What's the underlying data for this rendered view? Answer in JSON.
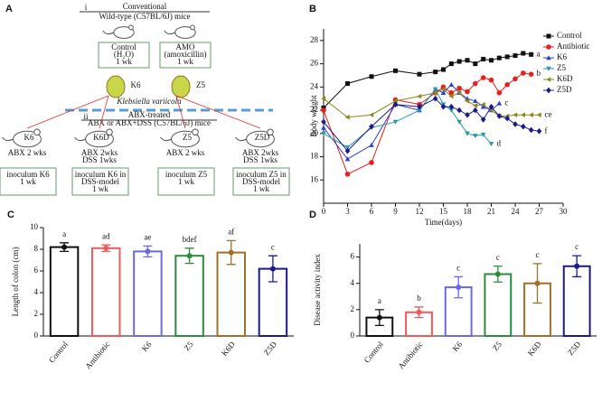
{
  "diagram": {
    "panel_label": "A",
    "section_i": {
      "marker": "i",
      "title": "Conventional",
      "subtitle": "Wild-type (C57BL/6J) mice"
    },
    "groups": [
      {
        "lines": [
          "Control",
          "(H₂O)",
          "1 wk"
        ]
      },
      {
        "lines": [
          "AMO",
          "(amoxicillin)",
          "1 wk"
        ]
      }
    ],
    "strains": [
      "K6",
      "Z5"
    ],
    "species": "Klebsiella variicola",
    "section_ii": {
      "marker": "ii",
      "title": "ABX-treated",
      "subtitle": "ABX or ABX+DSS (C57BL/6J) mice"
    },
    "mice": [
      {
        "name": "K6",
        "lines": [
          "ABX 2 wks"
        ]
      },
      {
        "name": "K6D",
        "lines": [
          "ABX  2wks",
          "DSS  1wks"
        ]
      },
      {
        "name": "Z5",
        "lines": [
          "ABX 2 wks"
        ]
      },
      {
        "name": "Z5D",
        "lines": [
          "ABX  2wks",
          "DSS  1wks"
        ]
      }
    ],
    "inocula": [
      {
        "lines": [
          "inoculum K6",
          "1 wk"
        ]
      },
      {
        "lines": [
          "inoculum K6 in",
          "DSS-model",
          "1 wk"
        ]
      },
      {
        "lines": [
          "inoculum Z5",
          "1 wk"
        ]
      },
      {
        "lines": [
          "inoculum Z5 in",
          "DSS-model",
          "1 wk"
        ]
      }
    ]
  },
  "chart_data": [
    {
      "type": "line",
      "panel_label": "B",
      "x_label": "Time(days)",
      "y_label": "Body weight",
      "x": [
        0,
        3,
        6,
        9,
        12,
        14,
        15,
        16,
        17,
        18,
        19,
        20,
        21,
        22,
        23,
        24,
        25,
        26,
        27
      ],
      "xlim": [
        0,
        30
      ],
      "xticks": [
        0,
        3,
        6,
        9,
        12,
        15,
        18,
        21,
        24,
        27,
        30
      ],
      "ylim": [
        14,
        29
      ],
      "yticks": [
        16,
        18,
        20,
        22,
        24,
        26,
        28
      ],
      "legend": "top-right",
      "series": [
        {
          "name": "Control",
          "color": "#111111",
          "marker": "square",
          "end_label": "a",
          "values": [
            22.2,
            24.3,
            24.9,
            25.4,
            25.1,
            25.3,
            25.5,
            26.0,
            26.2,
            26.3,
            26.0,
            26.4,
            26.3,
            26.5,
            26.6,
            26.7,
            26.9,
            26.8,
            null
          ]
        },
        {
          "name": "Antibiotic",
          "color": "#e8201c",
          "marker": "circle",
          "end_label": "b",
          "values": [
            22.0,
            16.5,
            17.5,
            22.9,
            22.5,
            23.5,
            24.0,
            23.5,
            23.9,
            23.6,
            24.3,
            24.8,
            24.6,
            23.5,
            24.2,
            24.7,
            25.2,
            25.1,
            null
          ]
        },
        {
          "name": "K6",
          "color": "#2c3fd0",
          "marker": "triangle",
          "end_label": "c",
          "values": [
            20.5,
            17.8,
            19.0,
            22.5,
            22.0,
            23.8,
            23.5,
            24.2,
            23.5,
            23.0,
            22.8,
            22.3,
            22.0,
            22.6,
            null,
            null,
            null,
            null,
            null
          ]
        },
        {
          "name": "Z5",
          "color": "#2a9aa8",
          "marker": "triangle-down",
          "end_label": "d",
          "values": [
            20.0,
            18.8,
            20.5,
            21.0,
            22.0,
            23.8,
            22.5,
            22.0,
            21.0,
            20.0,
            19.8,
            19.9,
            19.1,
            null,
            null,
            null,
            null,
            null,
            null
          ]
        },
        {
          "name": "K6D",
          "color": "#8a8a20",
          "marker": "triangle-left",
          "end_label": "ce",
          "values": [
            23.0,
            21.4,
            21.6,
            22.8,
            23.2,
            23.5,
            23.8,
            23.2,
            23.5,
            22.8,
            22.4,
            22.5,
            22.0,
            21.5,
            21.5,
            21.6,
            21.6,
            21.6,
            21.6
          ]
        },
        {
          "name": "Z5D",
          "color": "#1a1a8c",
          "marker": "diamond",
          "end_label": "f",
          "values": [
            21.0,
            18.5,
            20.6,
            22.5,
            22.3,
            23.0,
            22.3,
            22.3,
            22.0,
            21.6,
            22.0,
            21.2,
            22.3,
            21.5,
            21.3,
            20.8,
            20.6,
            20.3,
            20.2
          ]
        }
      ]
    },
    {
      "type": "bar",
      "panel_label": "C",
      "y_label": "Length of colon (cm)",
      "categories": [
        "Control",
        "Antibiotic",
        "K6",
        "Z5",
        "K6D",
        "Z5D"
      ],
      "values": [
        8.2,
        8.1,
        7.8,
        7.4,
        7.7,
        6.2
      ],
      "errors": [
        0.4,
        0.3,
        0.5,
        0.7,
        1.1,
        1.2
      ],
      "annotations": [
        "a",
        "ad",
        "ae",
        "bdef",
        "af",
        "c"
      ],
      "colors": [
        "#111111",
        "#f05a5a",
        "#6a6ae8",
        "#2e8b3e",
        "#a0702a",
        "#1a1a8c"
      ],
      "ylim": [
        0,
        10
      ],
      "yticks": [
        0,
        2,
        4,
        6,
        8,
        10
      ]
    },
    {
      "type": "bar",
      "panel_label": "D",
      "y_label": "Disease activity index",
      "categories": [
        "Control",
        "Antibiotic",
        "K6",
        "Z5",
        "K6D",
        "Z5D"
      ],
      "values": [
        1.4,
        1.8,
        3.7,
        4.7,
        4.0,
        5.3
      ],
      "errors": [
        0.6,
        0.4,
        0.8,
        0.6,
        1.5,
        0.8
      ],
      "annotations": [
        "a",
        "b",
        "c",
        "c",
        "c",
        "c"
      ],
      "colors": [
        "#111111",
        "#f05a5a",
        "#6a6ae8",
        "#2e8b3e",
        "#a0702a",
        "#1a1a8c"
      ],
      "ylim": [
        0,
        7
      ],
      "yticks": [
        0,
        2,
        4,
        6
      ]
    }
  ]
}
